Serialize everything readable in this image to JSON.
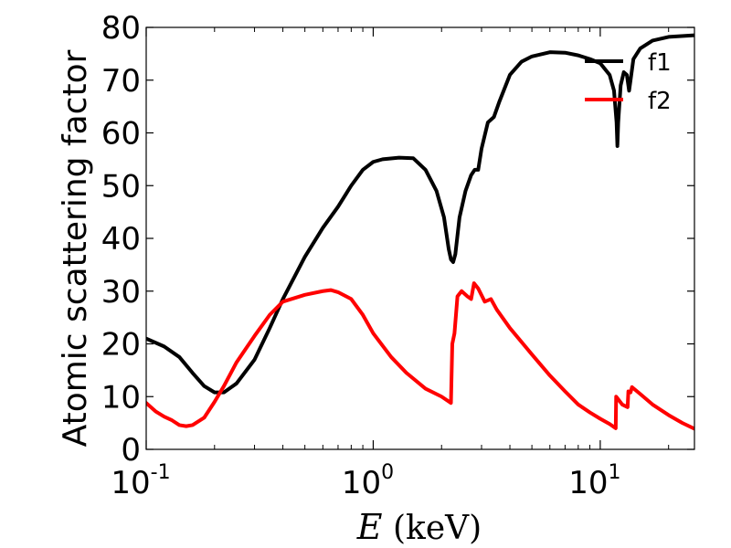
{
  "chart_data": {
    "type": "line",
    "xscale": "log",
    "xlim": [
      0.1,
      26
    ],
    "ylim": [
      0,
      80
    ],
    "xlabel_var": "E",
    "xlabel_unit": " (keV)",
    "ylabel": "Atomic scattering factor",
    "y_ticks": [
      "0",
      "10",
      "20",
      "30",
      "40",
      "50",
      "60",
      "70",
      "80"
    ],
    "y_tick_values": [
      0,
      10,
      20,
      30,
      40,
      50,
      60,
      70,
      80
    ],
    "x_ticks": [
      {
        "value": 0.1,
        "base": "10",
        "exp": "-1"
      },
      {
        "value": 1,
        "base": "10",
        "exp": "0"
      },
      {
        "value": 10,
        "base": "10",
        "exp": "1"
      }
    ],
    "legend": {
      "position": "top-right"
    },
    "series": [
      {
        "name": "f1",
        "color": "#000000",
        "points": [
          [
            0.1,
            21
          ],
          [
            0.12,
            19.5
          ],
          [
            0.14,
            17.5
          ],
          [
            0.16,
            14.5
          ],
          [
            0.18,
            12
          ],
          [
            0.2,
            10.8
          ],
          [
            0.22,
            10.8
          ],
          [
            0.25,
            12.5
          ],
          [
            0.3,
            17
          ],
          [
            0.35,
            23
          ],
          [
            0.4,
            28.5
          ],
          [
            0.5,
            36.5
          ],
          [
            0.6,
            42
          ],
          [
            0.7,
            46
          ],
          [
            0.8,
            50
          ],
          [
            0.9,
            53
          ],
          [
            1.0,
            54.5
          ],
          [
            1.1,
            55
          ],
          [
            1.3,
            55.3
          ],
          [
            1.5,
            55.2
          ],
          [
            1.7,
            53
          ],
          [
            1.9,
            49
          ],
          [
            2.05,
            44
          ],
          [
            2.15,
            38
          ],
          [
            2.2,
            36
          ],
          [
            2.25,
            35.5
          ],
          [
            2.3,
            37
          ],
          [
            2.4,
            44
          ],
          [
            2.55,
            49
          ],
          [
            2.7,
            52
          ],
          [
            2.8,
            53
          ],
          [
            2.9,
            53
          ],
          [
            3.0,
            57
          ],
          [
            3.2,
            62
          ],
          [
            3.4,
            63
          ],
          [
            3.6,
            66
          ],
          [
            4.0,
            71
          ],
          [
            4.5,
            73.5
          ],
          [
            5.0,
            74.5
          ],
          [
            6.0,
            75.3
          ],
          [
            7.0,
            75.2
          ],
          [
            8.0,
            74.7
          ],
          [
            9.0,
            74
          ],
          [
            10.0,
            73.2
          ],
          [
            11.0,
            71
          ],
          [
            11.5,
            68
          ],
          [
            11.8,
            62
          ],
          [
            11.9,
            57.5
          ],
          [
            12.0,
            62
          ],
          [
            12.3,
            69
          ],
          [
            12.7,
            71.5
          ],
          [
            13.1,
            71
          ],
          [
            13.4,
            68
          ],
          [
            13.6,
            70
          ],
          [
            14.0,
            74
          ],
          [
            15.0,
            76
          ],
          [
            17.0,
            77.5
          ],
          [
            20.0,
            78.2
          ],
          [
            26.0,
            78.5
          ]
        ]
      },
      {
        "name": "f2",
        "color": "#ff0000",
        "points": [
          [
            0.1,
            8.8
          ],
          [
            0.11,
            7.2
          ],
          [
            0.12,
            6.2
          ],
          [
            0.13,
            5.5
          ],
          [
            0.14,
            4.6
          ],
          [
            0.15,
            4.4
          ],
          [
            0.16,
            4.6
          ],
          [
            0.18,
            6
          ],
          [
            0.2,
            9
          ],
          [
            0.22,
            12
          ],
          [
            0.25,
            16.5
          ],
          [
            0.3,
            21.5
          ],
          [
            0.35,
            25.5
          ],
          [
            0.4,
            28
          ],
          [
            0.5,
            29.3
          ],
          [
            0.6,
            30
          ],
          [
            0.65,
            30.2
          ],
          [
            0.7,
            29.8
          ],
          [
            0.8,
            28.5
          ],
          [
            0.9,
            25.5
          ],
          [
            1.0,
            22
          ],
          [
            1.2,
            17.5
          ],
          [
            1.4,
            14.5
          ],
          [
            1.7,
            11.5
          ],
          [
            2.0,
            10
          ],
          [
            2.2,
            8.8
          ],
          [
            2.23,
            20
          ],
          [
            2.28,
            22
          ],
          [
            2.35,
            29
          ],
          [
            2.45,
            30
          ],
          [
            2.6,
            29
          ],
          [
            2.7,
            28.5
          ],
          [
            2.78,
            31.5
          ],
          [
            2.9,
            30.5
          ],
          [
            3.1,
            28
          ],
          [
            3.3,
            28.5
          ],
          [
            3.5,
            26.5
          ],
          [
            4.0,
            23
          ],
          [
            5.0,
            18
          ],
          [
            6.0,
            14
          ],
          [
            7.0,
            11
          ],
          [
            8.0,
            8.5
          ],
          [
            9.0,
            7
          ],
          [
            10.0,
            5.8
          ],
          [
            11.0,
            4.8
          ],
          [
            11.7,
            4
          ],
          [
            11.75,
            10
          ],
          [
            12.5,
            8.5
          ],
          [
            13.2,
            8
          ],
          [
            13.3,
            11
          ],
          [
            13.6,
            10.8
          ],
          [
            13.8,
            11.8
          ],
          [
            15.0,
            10.5
          ],
          [
            17.0,
            8.5
          ],
          [
            20.0,
            6.5
          ],
          [
            23.0,
            5
          ],
          [
            26.0,
            3.9
          ]
        ]
      }
    ]
  }
}
